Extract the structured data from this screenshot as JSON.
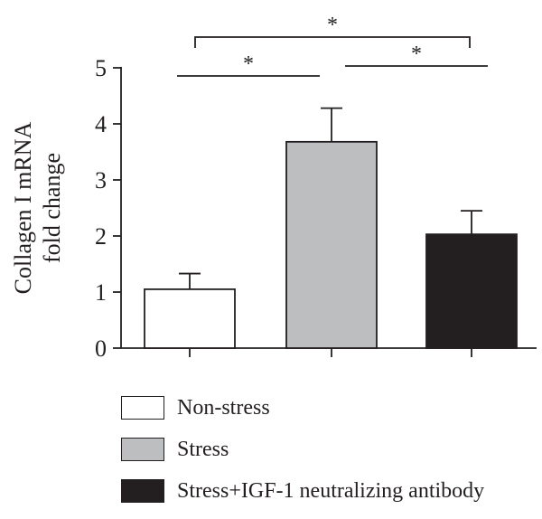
{
  "chart_data": {
    "type": "bar",
    "categories": [
      "Non-stress",
      "Stress",
      "Stress+IGF-1 neutralizing antibody"
    ],
    "values": [
      1.05,
      3.68,
      2.03
    ],
    "errors": [
      0.28,
      0.6,
      0.42
    ],
    "colors": [
      "#ffffff",
      "#bcbec0",
      "#231f20"
    ],
    "ylabel_lines": [
      "Collagen I mRNA",
      "fold change"
    ],
    "yticks": [
      "0",
      "1",
      "2",
      "3",
      "4",
      "5"
    ],
    "ylim": [
      0,
      5
    ],
    "significance": [
      {
        "from": 0,
        "to": 1,
        "label": "*"
      },
      {
        "from": 1,
        "to": 2,
        "label": "*"
      },
      {
        "from": 0,
        "to": 2,
        "label": "*"
      }
    ],
    "legend_position": "bottom"
  },
  "legend": {
    "items": [
      {
        "label": "Non-stress",
        "color": "#ffffff"
      },
      {
        "label": "Stress",
        "color": "#bcbec0"
      },
      {
        "label": "Stress+IGF-1 neutralizing antibody",
        "color": "#231f20"
      }
    ]
  }
}
